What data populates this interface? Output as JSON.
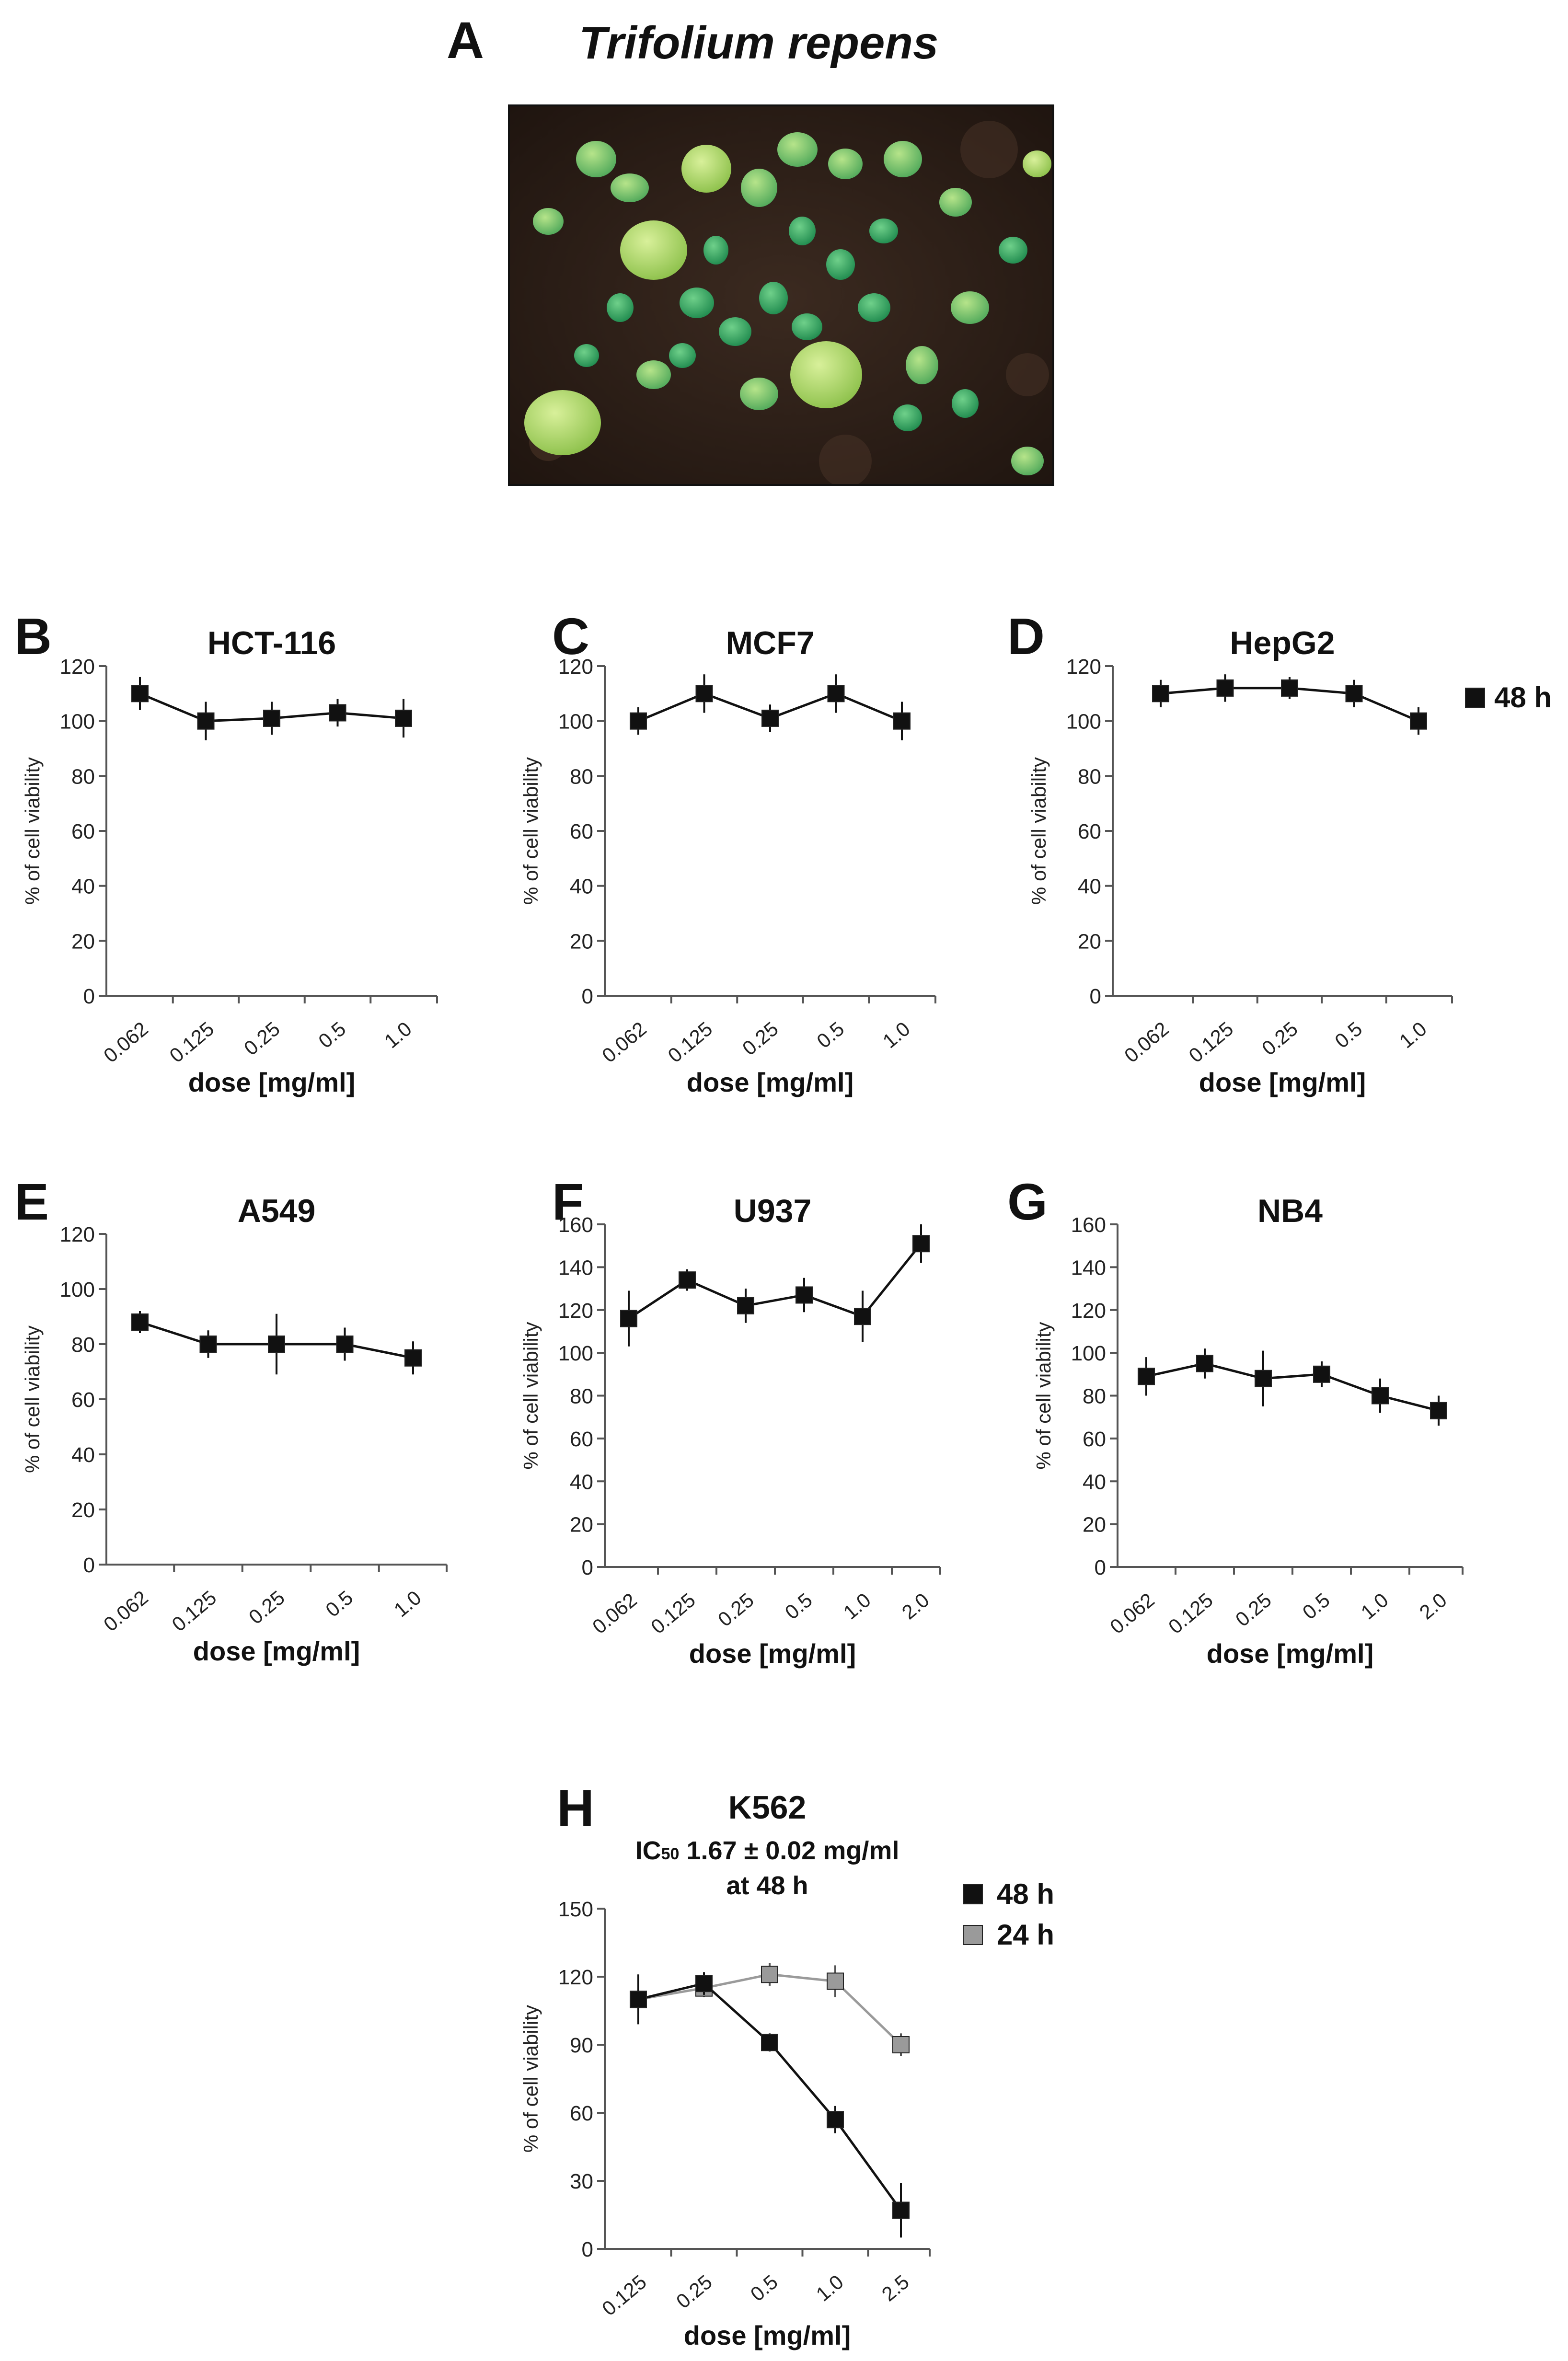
{
  "figure": {
    "panel_a": {
      "letter": "A",
      "title": "Trifolium repens"
    },
    "photo_alt": "Trifolium repens seedlings"
  },
  "legend_48_label": "48 h",
  "chart_data": [
    {
      "id": "B",
      "letter": "B",
      "type": "line",
      "title": "HCT-116",
      "xlabel": "dose [mg/ml]",
      "ylabel": "% of cell viability",
      "categories": [
        "0.062",
        "0.125",
        "0.25",
        "0.5",
        "1.0"
      ],
      "ylim": [
        0,
        120
      ],
      "yticks": [
        0,
        20,
        40,
        60,
        80,
        100,
        120
      ],
      "series": [
        {
          "name": "48 h",
          "color": "#111111",
          "values": [
            110,
            100,
            101,
            103,
            101
          ],
          "errors": [
            6,
            7,
            6,
            5,
            7
          ]
        }
      ]
    },
    {
      "id": "C",
      "letter": "C",
      "type": "line",
      "title": "MCF7",
      "xlabel": "dose [mg/ml]",
      "ylabel": "% of cell viability",
      "categories": [
        "0.062",
        "0.125",
        "0.25",
        "0.5",
        "1.0"
      ],
      "ylim": [
        0,
        120
      ],
      "yticks": [
        0,
        20,
        40,
        60,
        80,
        100,
        120
      ],
      "series": [
        {
          "name": "48 h",
          "color": "#111111",
          "values": [
            100,
            110,
            101,
            110,
            100
          ],
          "errors": [
            5,
            7,
            5,
            7,
            7
          ]
        }
      ]
    },
    {
      "id": "D",
      "letter": "D",
      "type": "line",
      "title": "HepG2",
      "xlabel": "dose [mg/ml]",
      "ylabel": "% of cell viability",
      "categories": [
        "0.062",
        "0.125",
        "0.25",
        "0.5",
        "1.0"
      ],
      "ylim": [
        0,
        120
      ],
      "yticks": [
        0,
        20,
        40,
        60,
        80,
        100,
        120
      ],
      "series": [
        {
          "name": "48 h",
          "color": "#111111",
          "values": [
            110,
            112,
            112,
            110,
            100
          ],
          "errors": [
            5,
            5,
            4,
            5,
            5
          ]
        }
      ]
    },
    {
      "id": "E",
      "letter": "E",
      "type": "line",
      "title": "A549",
      "xlabel": "dose [mg/ml]",
      "ylabel": "% of cell viability",
      "categories": [
        "0.062",
        "0.125",
        "0.25",
        "0.5",
        "1.0"
      ],
      "ylim": [
        0,
        120
      ],
      "yticks": [
        0,
        20,
        40,
        60,
        80,
        100,
        120
      ],
      "series": [
        {
          "name": "48 h",
          "color": "#111111",
          "values": [
            88,
            80,
            80,
            80,
            75
          ],
          "errors": [
            4,
            5,
            11,
            6,
            6
          ]
        }
      ]
    },
    {
      "id": "F",
      "letter": "F",
      "type": "line",
      "title": "U937",
      "xlabel": "dose [mg/ml]",
      "ylabel": "% of cell viability",
      "categories": [
        "0.062",
        "0.125",
        "0.25",
        "0.5",
        "1.0",
        "2.0"
      ],
      "ylim": [
        0,
        160
      ],
      "yticks": [
        0,
        20,
        40,
        60,
        80,
        100,
        120,
        140,
        160
      ],
      "series": [
        {
          "name": "48 h",
          "color": "#111111",
          "values": [
            116,
            134,
            122,
            127,
            117,
            151
          ],
          "errors": [
            13,
            5,
            8,
            8,
            12,
            9
          ]
        }
      ]
    },
    {
      "id": "G",
      "letter": "G",
      "type": "line",
      "title": "NB4",
      "xlabel": "dose [mg/ml]",
      "ylabel": "% of cell viability",
      "categories": [
        "0.062",
        "0.125",
        "0.25",
        "0.5",
        "1.0",
        "2.0"
      ],
      "ylim": [
        0,
        160
      ],
      "yticks": [
        0,
        20,
        40,
        60,
        80,
        100,
        120,
        140,
        160
      ],
      "series": [
        {
          "name": "48 h",
          "color": "#111111",
          "values": [
            89,
            95,
            88,
            90,
            80,
            73
          ],
          "errors": [
            9,
            7,
            13,
            6,
            8,
            7
          ]
        }
      ]
    },
    {
      "id": "H",
      "letter": "H",
      "type": "line",
      "title": "K562",
      "subtitle_prefix": "IC",
      "subtitle_sub": "50",
      "subtitle": " 1.67 ± 0.02 mg/ml",
      "subtitle2": "at 48 h",
      "xlabel": "dose [mg/ml]",
      "ylabel": "% of cell viability",
      "categories": [
        "0.125",
        "0.25",
        "0.5",
        "1.0",
        "2.5"
      ],
      "ylim": [
        0,
        150
      ],
      "yticks": [
        0,
        30,
        60,
        90,
        120,
        150
      ],
      "legend": [
        "48 h",
        "24 h"
      ],
      "series": [
        {
          "name": "48 h",
          "color": "#111111",
          "values": [
            110,
            117,
            91,
            57,
            17
          ],
          "errors": [
            11,
            5,
            4,
            6,
            12
          ]
        },
        {
          "name": "24 h",
          "color": "#9a9a9a",
          "values": [
            110,
            115,
            121,
            118,
            90
          ],
          "errors": [
            6,
            4,
            5,
            7,
            5
          ]
        }
      ]
    }
  ]
}
